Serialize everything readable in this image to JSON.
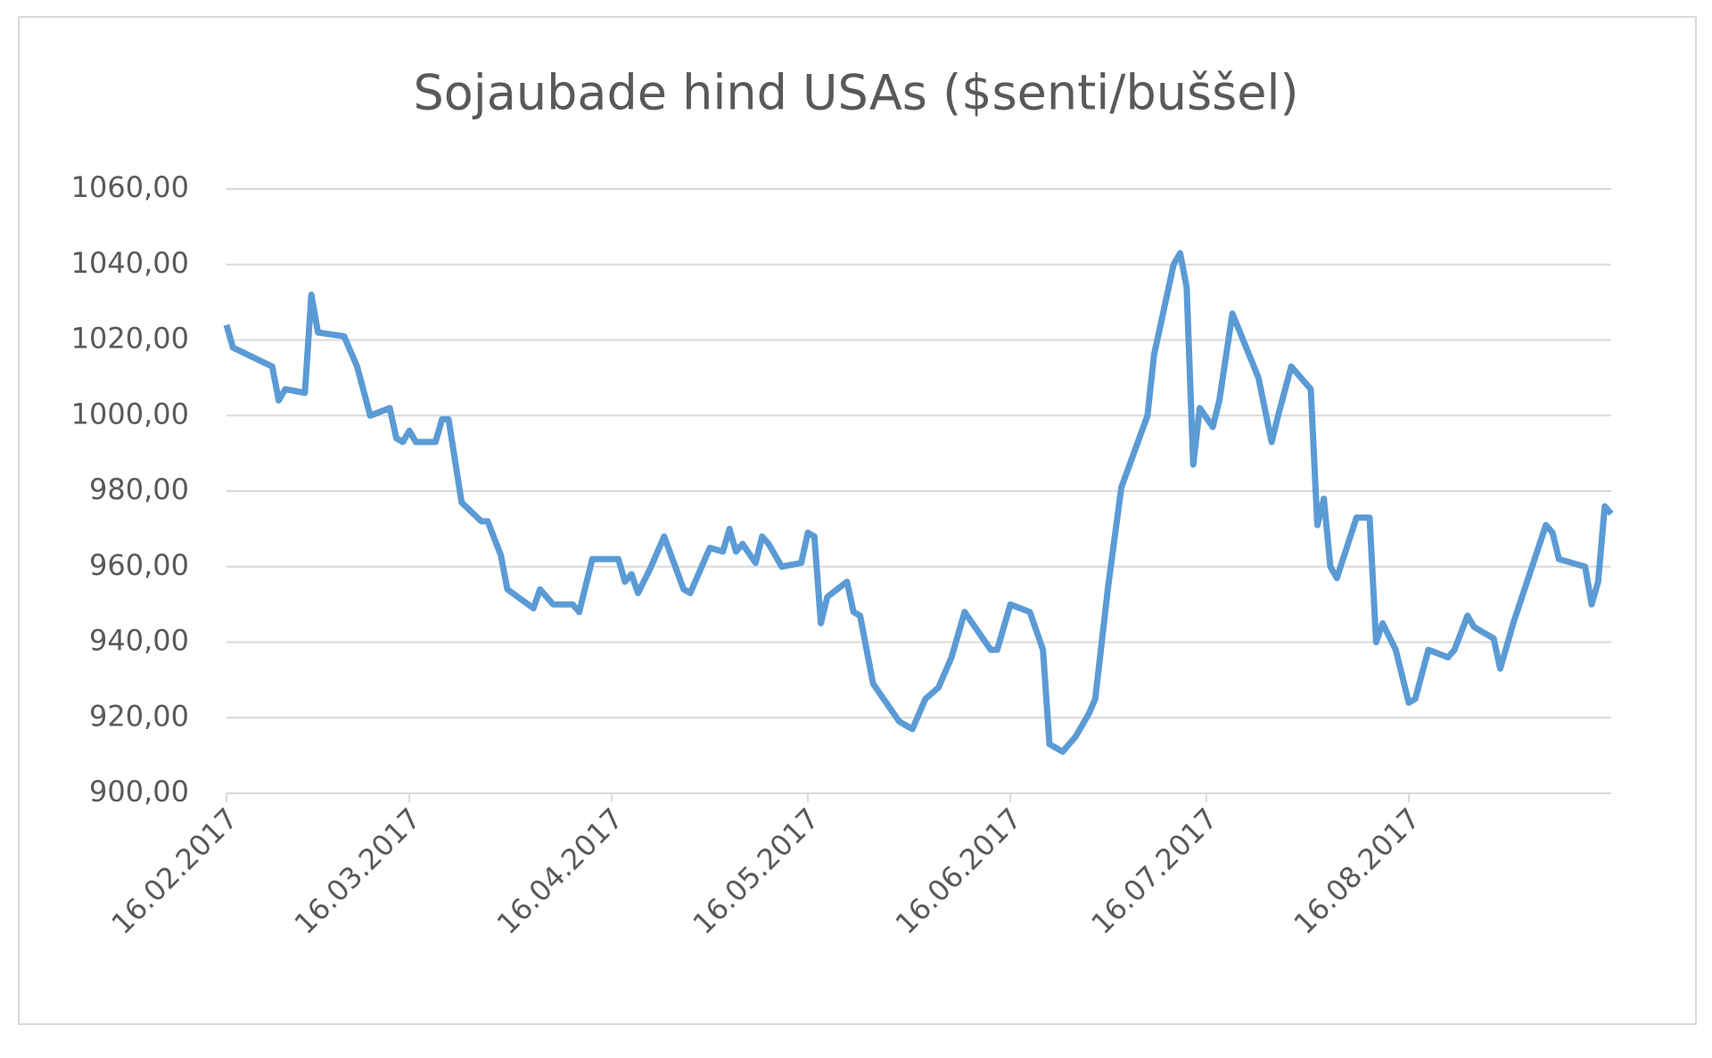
{
  "chart_data": {
    "type": "line",
    "title": "Sojaubade hind USAs ($senti/buššel)",
    "x": [
      "16.02.2017",
      "17.02.2017",
      "23.02.2017",
      "24.02.2017",
      "25.02.2017",
      "28.02.2017",
      "01.03.2017",
      "02.03.2017",
      "06.03.2017",
      "08.03.2017",
      "10.03.2017",
      "13.03.2017",
      "14.03.2017",
      "15.03.2017",
      "16.03.2017",
      "17.03.2017",
      "20.03.2017",
      "21.03.2017",
      "22.03.2017",
      "24.03.2017",
      "27.03.2017",
      "28.03.2017",
      "30.03.2017",
      "31.03.2017",
      "04.04.2017",
      "05.04.2017",
      "07.04.2017",
      "10.04.2017",
      "11.04.2017",
      "13.04.2017",
      "17.04.2017",
      "18.04.2017",
      "19.04.2017",
      "20.04.2017",
      "22.04.2017",
      "24.04.2017",
      "27.04.2017",
      "28.04.2017",
      "01.05.2017",
      "03.05.2017",
      "04.05.2017",
      "05.05.2017",
      "06.05.2017",
      "08.05.2017",
      "09.05.2017",
      "10.05.2017",
      "12.05.2017",
      "15.05.2017",
      "16.05.2017",
      "17.05.2017",
      "18.05.2017",
      "19.05.2017",
      "22.05.2017",
      "23.05.2017",
      "24.05.2017",
      "26.05.2017",
      "30.05.2017",
      "01.06.2017",
      "03.06.2017",
      "05.06.2017",
      "07.06.2017",
      "09.06.2017",
      "13.06.2017",
      "14.06.2017",
      "16.06.2017",
      "19.06.2017",
      "21.06.2017",
      "22.06.2017",
      "24.06.2017",
      "26.06.2017",
      "28.06.2017",
      "29.06.2017",
      "01.07.2017",
      "03.07.2017",
      "07.07.2017",
      "08.07.2017",
      "11.07.2017",
      "12.07.2017",
      "13.07.2017",
      "14.07.2017",
      "15.07.2017",
      "17.07.2017",
      "18.07.2017",
      "20.07.2017",
      "24.07.2017",
      "26.07.2017",
      "27.07.2017",
      "29.07.2017",
      "01.08.2017",
      "02.08.2017",
      "03.08.2017",
      "04.08.2017",
      "05.08.2017",
      "08.08.2017",
      "10.08.2017",
      "11.08.2017",
      "12.08.2017",
      "14.08.2017",
      "16.08.2017",
      "17.08.2017",
      "19.08.2017",
      "22.08.2017",
      "23.08.2017",
      "25.08.2017",
      "26.08.2017",
      "29.08.2017",
      "30.08.2017",
      "01.09.2017",
      "06.09.2017",
      "07.09.2017",
      "08.09.2017",
      "12.09.2017",
      "13.09.2017",
      "14.09.2017",
      "15.09.2017",
      "16.09.2017"
    ],
    "series": [
      {
        "name": "Sojaubade hind",
        "color": "#5b9bd5",
        "values": [
          1024,
          1018,
          1013,
          1004,
          1007,
          1006,
          1032,
          1022,
          1021,
          1013,
          1000,
          1002,
          994,
          993,
          996,
          993,
          993,
          999,
          999,
          977,
          972,
          972,
          963,
          954,
          949,
          954,
          950,
          950,
          948,
          962,
          962,
          956,
          958,
          953,
          960,
          968,
          954,
          953,
          965,
          964,
          970,
          964,
          966,
          961,
          968,
          966,
          960,
          961,
          969,
          968,
          945,
          952,
          956,
          948,
          947,
          929,
          919,
          917,
          925,
          928,
          936,
          948,
          938,
          938,
          950,
          948,
          938,
          913,
          911,
          915,
          921,
          925,
          955,
          981,
          1000,
          1016,
          1040,
          1043,
          1034,
          987,
          1002,
          997,
          1004,
          1027,
          1010,
          993,
          1000,
          1013,
          1007,
          971,
          978,
          960,
          957,
          973,
          973,
          940,
          945,
          938,
          924,
          925,
          938,
          936,
          938,
          947,
          944,
          941,
          933,
          945,
          971,
          969,
          962,
          960,
          950,
          956,
          976,
          974
        ]
      }
    ],
    "xlim": [
      "16.02.2017",
      "16.09.2017"
    ],
    "xticks": [
      "16.02.2017",
      "16.03.2017",
      "16.04.2017",
      "16.05.2017",
      "16.06.2017",
      "16.07.2017",
      "16.08.2017"
    ],
    "ylim": [
      900,
      1060
    ],
    "yticks": [
      {
        "value": 900,
        "label": "900,00"
      },
      {
        "value": 920,
        "label": "920,00"
      },
      {
        "value": 940,
        "label": "940,00"
      },
      {
        "value": 960,
        "label": "960,00"
      },
      {
        "value": 980,
        "label": "980,00"
      },
      {
        "value": 1000,
        "label": "1000,00"
      },
      {
        "value": 1020,
        "label": "1020,00"
      },
      {
        "value": 1040,
        "label": "1040,00"
      },
      {
        "value": 1060,
        "label": "1060,00"
      }
    ],
    "grid": true
  }
}
